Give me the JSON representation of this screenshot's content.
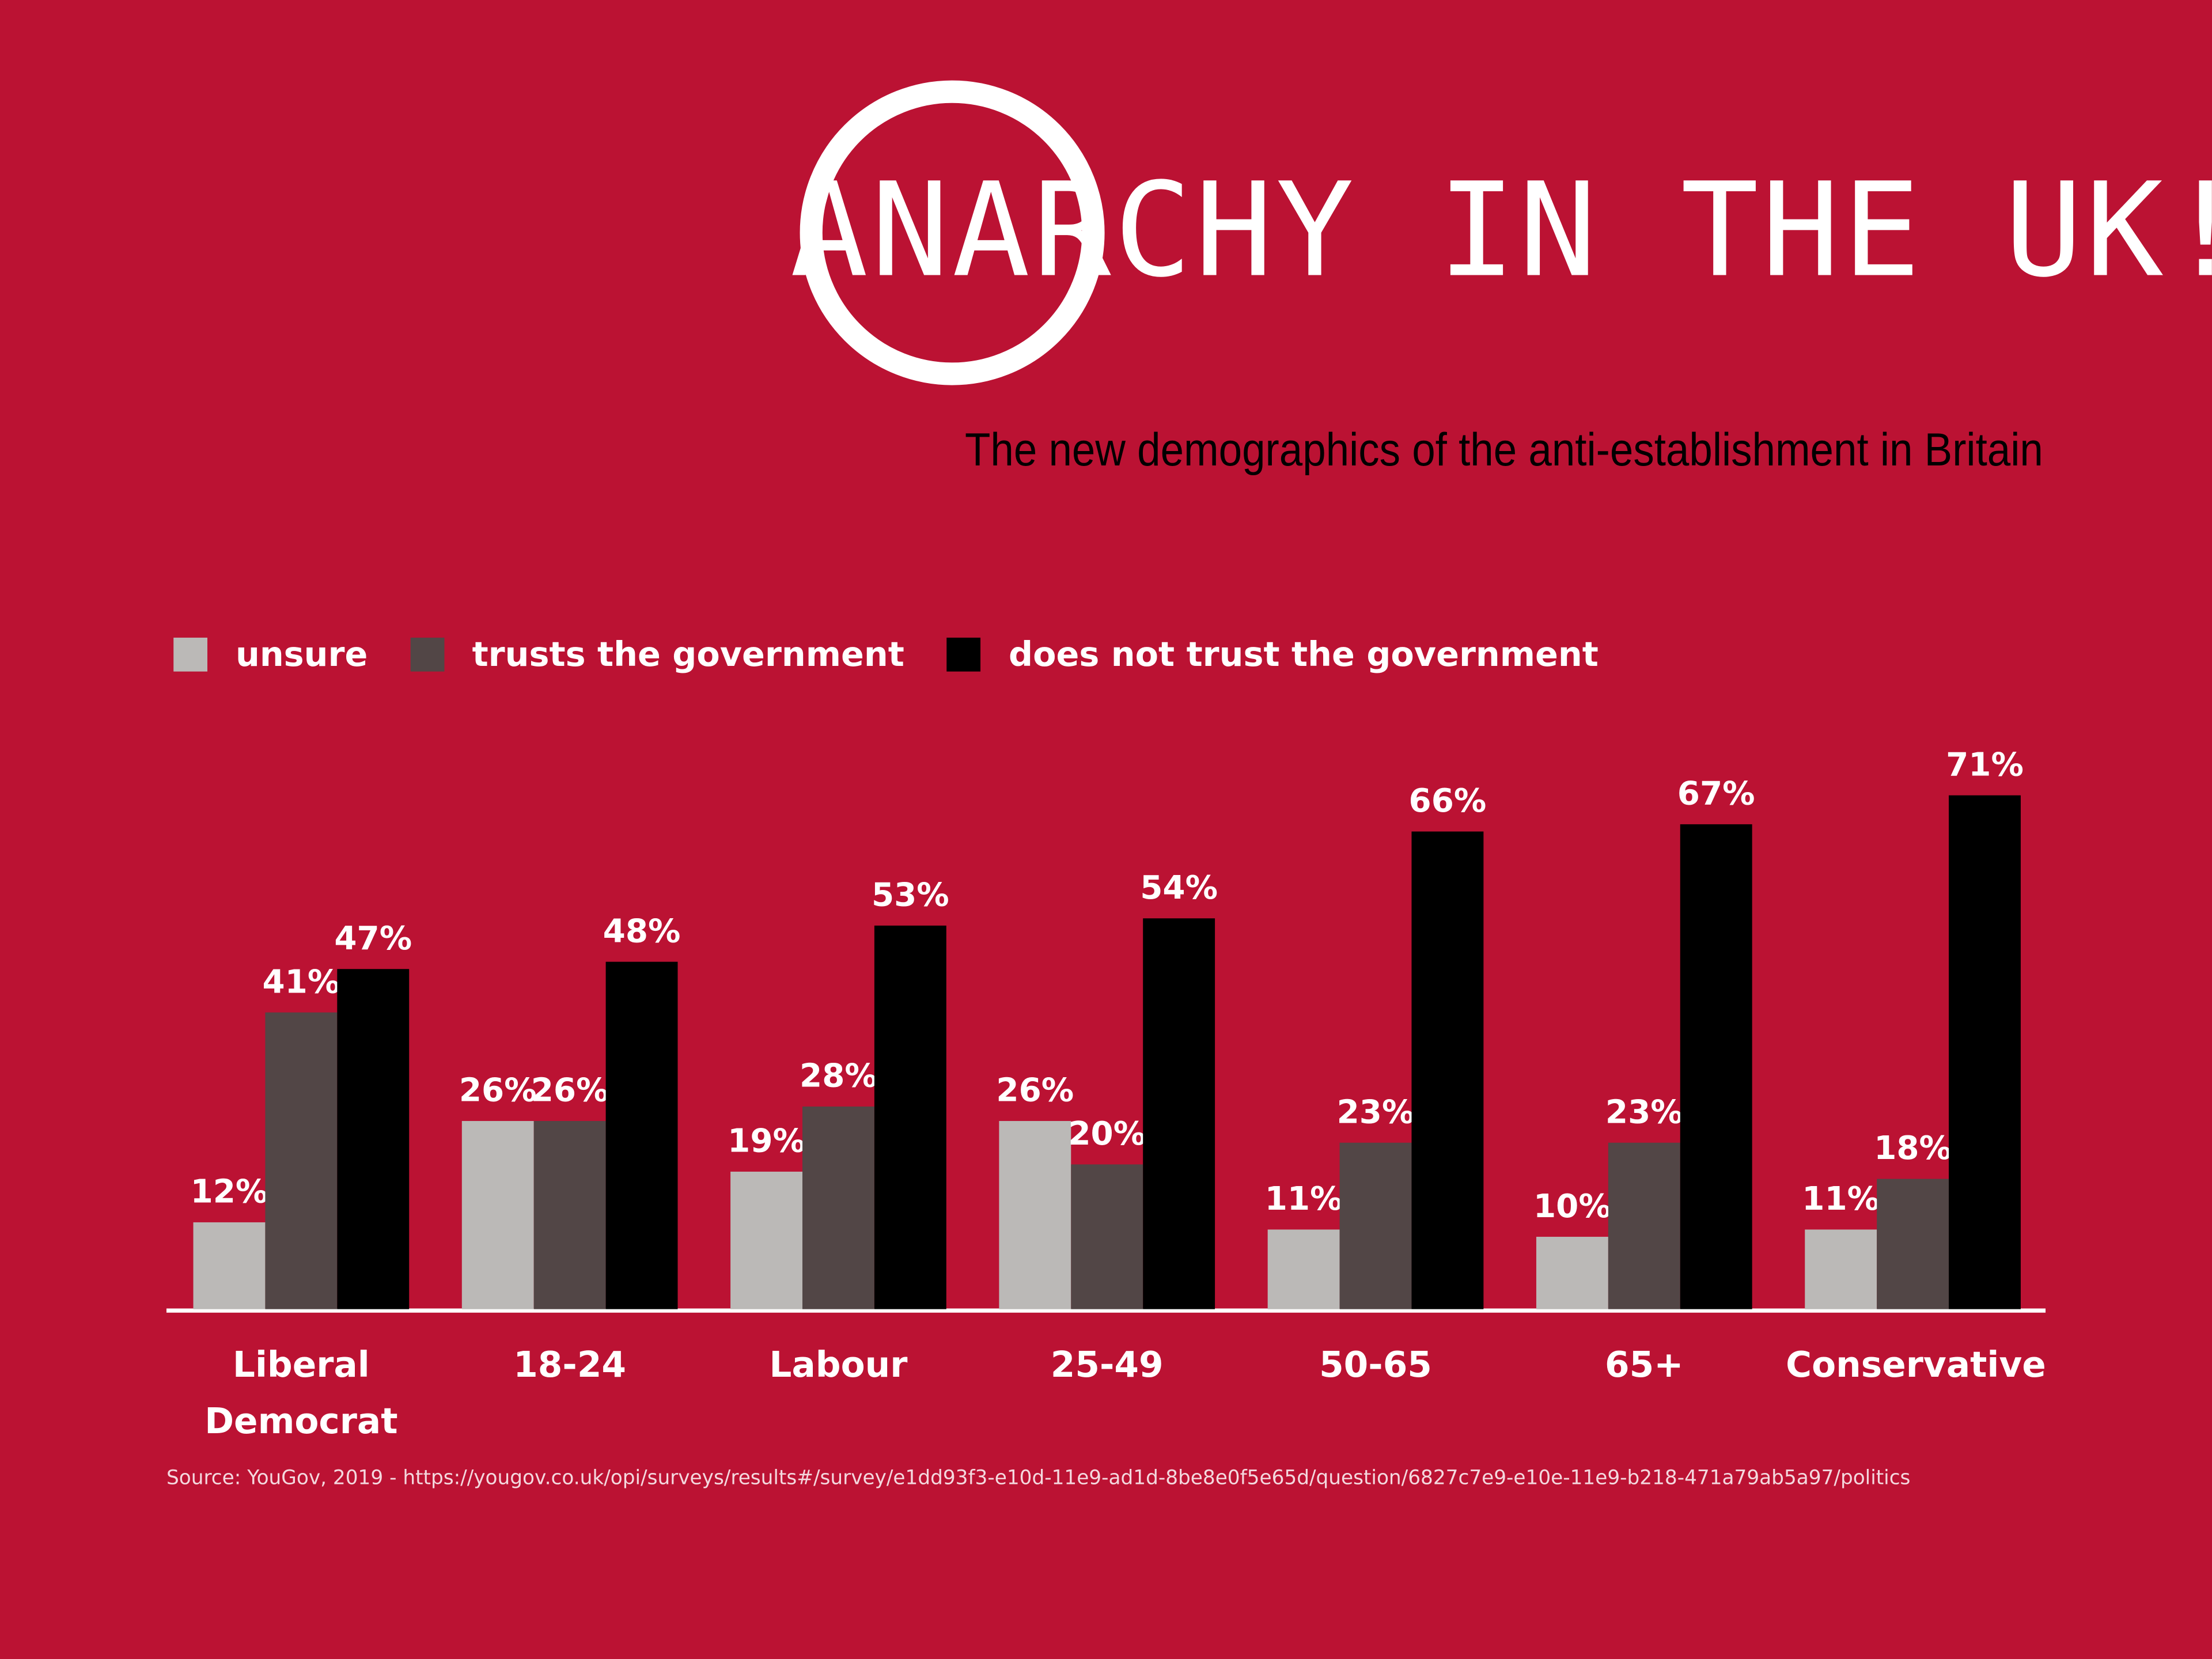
{
  "chart_data": {
    "type": "bar",
    "title": "ANARCHY IN THE UK!",
    "subtitle": "The new demographics of the anti-establishment in Britain",
    "source": "Source: YouGov, 2019 - https://yougov.co.uk/opi/surveys/results#/survey/e1dd93f3-e10d-11e9-ad1d-8be8e0f5e65d/question/6827c7e9-e10e-11e9-b218-471a79ab5a97/politics",
    "categories": [
      "Liberal Democrat",
      "18-24",
      "Labour",
      "25-49",
      "50-65",
      "65+",
      "Conservative"
    ],
    "series": [
      {
        "name": "unsure",
        "color": "#bbb9b7",
        "values": [
          12,
          26,
          19,
          26,
          11,
          10,
          11
        ],
        "value_labels": [
          "12%",
          "26%",
          "19%",
          "26%",
          "11%",
          "10%",
          "11%"
        ]
      },
      {
        "name": "trusts the government",
        "color": "#524646",
        "values": [
          41,
          26,
          28,
          20,
          23,
          23,
          18
        ],
        "value_labels": [
          "41%",
          "26%",
          "28%",
          "20%",
          "23%",
          "23%",
          "18%"
        ]
      },
      {
        "name": "does not trust the government",
        "color": "#000000",
        "values": [
          47,
          48,
          53,
          54,
          66,
          67,
          71
        ],
        "value_labels": [
          "47%",
          "48%",
          "53%",
          "54%",
          "66%",
          "67%",
          "71%"
        ]
      }
    ]
  }
}
